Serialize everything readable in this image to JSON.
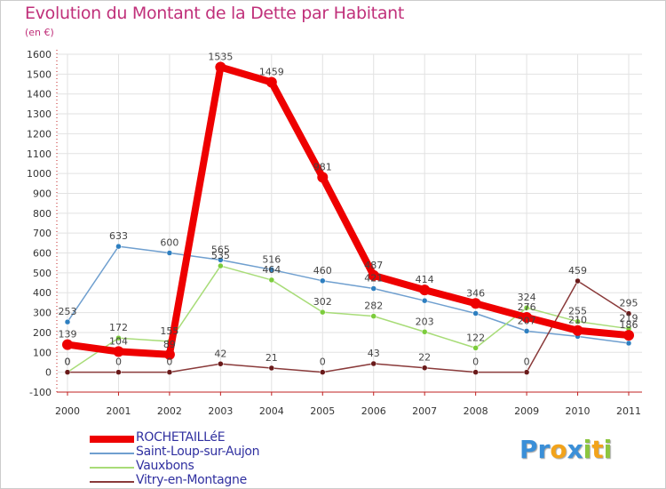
{
  "chart_data": {
    "type": "line",
    "title": "Evolution du Montant de la Dette par Habitant",
    "subtitle": "(en €)",
    "xlabel": "",
    "ylabel": "",
    "ylim": [
      -100,
      1600
    ],
    "yticks": [
      -100,
      0,
      100,
      200,
      300,
      400,
      500,
      600,
      700,
      800,
      900,
      1000,
      1100,
      1200,
      1300,
      1400,
      1500,
      1600
    ],
    "categories": [
      "2000",
      "2001",
      "2002",
      "2003",
      "2004",
      "2005",
      "2006",
      "2007",
      "2008",
      "2009",
      "2010",
      "2011"
    ],
    "grid": true,
    "series": [
      {
        "name": "Saint-Loup-sur-Aujon",
        "color": "#6f9fcf",
        "marker_color": "#2e7fc0",
        "values": [
          253,
          633,
          600,
          565,
          516,
          460,
          421,
          360,
          296,
          207,
          180,
          146
        ],
        "labels": [
          "253",
          "633",
          "600",
          "565",
          "516",
          "460",
          "421",
          "",
          "",
          "207",
          "",
          ""
        ]
      },
      {
        "name": "Vauxbons",
        "color": "#a8dc78",
        "marker_color": "#7ccc3c",
        "values": [
          0,
          172,
          155,
          535,
          464,
          302,
          282,
          203,
          122,
          324,
          255,
          219
        ],
        "labels": [
          "0",
          "172",
          "155",
          "535",
          "464",
          "302",
          "282",
          "203",
          "122",
          "324",
          "255",
          "219"
        ]
      },
      {
        "name": "Vitry-en-Montagne",
        "color": "#8a3a3a",
        "marker_color": "#6a1a1a",
        "values": [
          0,
          0,
          0,
          42,
          21,
          0,
          43,
          22,
          0,
          0,
          459,
          295
        ],
        "labels": [
          "0",
          "0",
          "0",
          "42",
          "21",
          "0",
          "43",
          "22",
          "0",
          "0",
          "459",
          "295"
        ]
      },
      {
        "name": "ROCHETAILLéE",
        "color": "#ee0000",
        "marker_color": "#ee0000",
        "values": [
          139,
          104,
          89,
          1535,
          1459,
          981,
          487,
          414,
          346,
          276,
          210,
          186
        ],
        "labels": [
          "139",
          "104",
          "89",
          "1535",
          "1459",
          "981",
          "487",
          "414",
          "346",
          "276",
          "210",
          "186"
        ]
      }
    ],
    "legend": [
      "ROCHETAILLéE",
      "Saint-Loup-sur-Aujon",
      "Vauxbons",
      "Vitry-en-Montagne"
    ]
  },
  "legend_colors": {
    "ROCHETAILLéE": "#ee0000",
    "Saint-Loup-sur-Aujon": "#6f9fcf",
    "Vauxbons": "#a8dc78",
    "Vitry-en-Montagne": "#8a3a3a"
  },
  "logo": {
    "letters": [
      "P",
      "r",
      "o",
      "x",
      "i",
      "t",
      "i"
    ],
    "colors": [
      "#3a8fd8",
      "#3a8fd8",
      "#f2a31b",
      "#3a8fd8",
      "#8cc63f",
      "#f2a31b",
      "#8cc63f"
    ]
  }
}
